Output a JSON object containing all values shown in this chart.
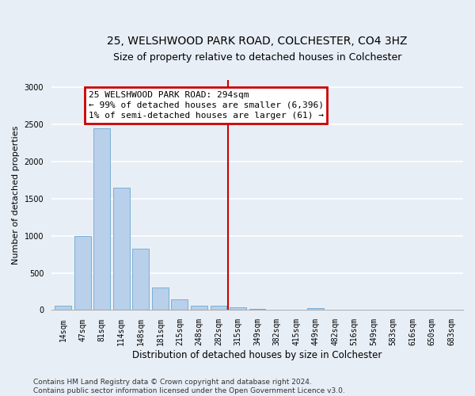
{
  "title": "25, WELSHWOOD PARK ROAD, COLCHESTER, CO4 3HZ",
  "subtitle": "Size of property relative to detached houses in Colchester",
  "xlabel": "Distribution of detached houses by size in Colchester",
  "ylabel": "Number of detached properties",
  "bar_labels": [
    "14sqm",
    "47sqm",
    "81sqm",
    "114sqm",
    "148sqm",
    "181sqm",
    "215sqm",
    "248sqm",
    "282sqm",
    "315sqm",
    "349sqm",
    "382sqm",
    "415sqm",
    "449sqm",
    "482sqm",
    "516sqm",
    "549sqm",
    "583sqm",
    "616sqm",
    "650sqm",
    "683sqm"
  ],
  "bar_values": [
    60,
    1000,
    2450,
    1650,
    830,
    300,
    140,
    55,
    55,
    40,
    20,
    0,
    0,
    25,
    0,
    0,
    0,
    0,
    0,
    0,
    0
  ],
  "bar_color": "#b8d0ea",
  "bar_edge_color": "#7aafd4",
  "background_color": "#e8eef6",
  "grid_color": "#ffffff",
  "vline_x": 8.5,
  "vline_color": "#cc0000",
  "annotation_text": "25 WELSHWOOD PARK ROAD: 294sqm\n← 99% of detached houses are smaller (6,396)\n1% of semi-detached houses are larger (61) →",
  "annotation_box_color": "#cc0000",
  "annotation_bg_color": "#ffffff",
  "ylim": [
    0,
    3100
  ],
  "yticks": [
    0,
    500,
    1000,
    1500,
    2000,
    2500,
    3000
  ],
  "footer_text": "Contains HM Land Registry data © Crown copyright and database right 2024.\nContains public sector information licensed under the Open Government Licence v3.0.",
  "title_fontsize": 10,
  "subtitle_fontsize": 9,
  "xlabel_fontsize": 8.5,
  "ylabel_fontsize": 8,
  "tick_fontsize": 7,
  "annot_fontsize": 8,
  "footer_fontsize": 6.5
}
